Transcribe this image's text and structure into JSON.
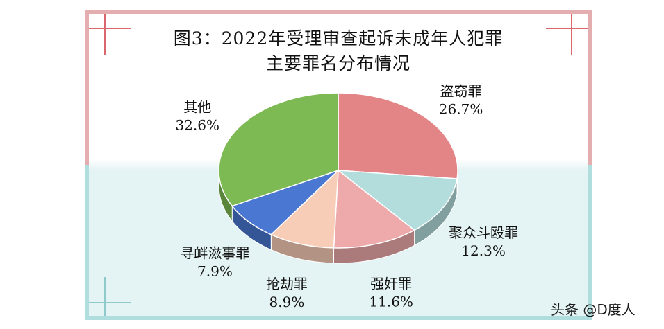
{
  "chart_data": {
    "type": "pie",
    "title": "图3：2022年受理审查起诉未成年人犯罪",
    "subtitle": "主要罪名分布情况",
    "slices": [
      {
        "label": "盗窃罪",
        "value": 26.7,
        "value_label": "26.7%",
        "color": "#e38487"
      },
      {
        "label": "聚众斗殴罪",
        "value": 12.3,
        "value_label": "12.3%",
        "color": "#b3dddd"
      },
      {
        "label": "强奸罪",
        "value": 11.6,
        "value_label": "11.6%",
        "color": "#eea9ab"
      },
      {
        "label": "抢劫罪",
        "value": 8.9,
        "value_label": "8.9%",
        "color": "#f8cdb8"
      },
      {
        "label": "寻衅滋事罪",
        "value": 7.9,
        "value_label": "7.9%",
        "color": "#4a77d1"
      },
      {
        "label": "其他",
        "value": 32.6,
        "value_label": "32.6%",
        "color": "#7dba53"
      }
    ],
    "legend": "none",
    "data_labels": "outside"
  },
  "watermark": "头条 @D度人",
  "colors": {
    "frame_top": "#e4aeb0",
    "frame_bottom": "#b0dede",
    "corner_accent": "#d9686e"
  }
}
